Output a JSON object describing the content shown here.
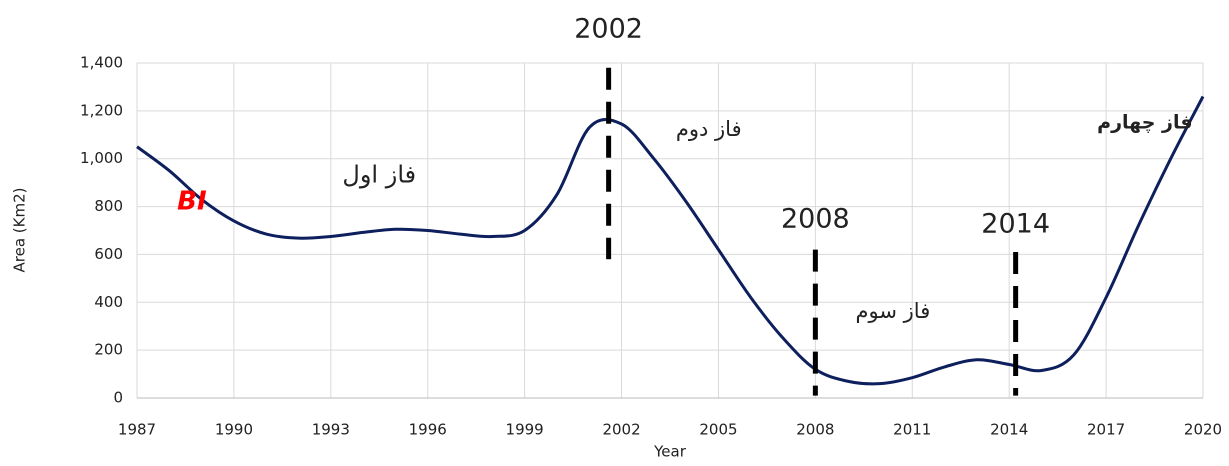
{
  "chart_data": {
    "type": "line",
    "x_label": "Year",
    "y_label": "Area (Km2)",
    "x": [
      1987,
      1988,
      1989,
      1990,
      1991,
      1992,
      1993,
      1994,
      1995,
      1996,
      1997,
      1998,
      1999,
      2000,
      2001,
      2002,
      2003,
      2004,
      2005,
      2006,
      2007,
      2008,
      2009,
      2010,
      2011,
      2012,
      2013,
      2014,
      2015,
      2016,
      2017,
      2018,
      2019,
      2020
    ],
    "series": [
      {
        "color": "#0d1f5c",
        "values": [
          1050,
          950,
          830,
          740,
          685,
          668,
          675,
          692,
          705,
          700,
          685,
          675,
          700,
          850,
          1130,
          1145,
          1000,
          820,
          620,
          420,
          250,
          120,
          70,
          60,
          85,
          130,
          160,
          140,
          115,
          180,
          420,
          720,
          1000,
          1260
        ]
      }
    ],
    "xlim": [
      1987,
      2020
    ],
    "xticks": [
      1987,
      1990,
      1993,
      1996,
      1999,
      2002,
      2005,
      2008,
      2011,
      2014,
      2017,
      2020
    ],
    "ylim": [
      0,
      1400
    ],
    "yticks": [
      0,
      200,
      400,
      600,
      800,
      {
        "value": 1000,
        "label": "1,000"
      },
      {
        "value": 1200,
        "label": "1,200"
      },
      {
        "value": 1400,
        "label": "1,400"
      }
    ],
    "grid": true,
    "markers": [
      {
        "x": 2001.6,
        "label": "2002"
      },
      {
        "x": 2008,
        "label": "2008"
      },
      {
        "x": 2014.2,
        "label": "2014"
      }
    ],
    "annotations": [
      "BI",
      "فاز اول",
      "فاز دوم",
      "فاز سوم",
      "فاز چهارم"
    ]
  }
}
